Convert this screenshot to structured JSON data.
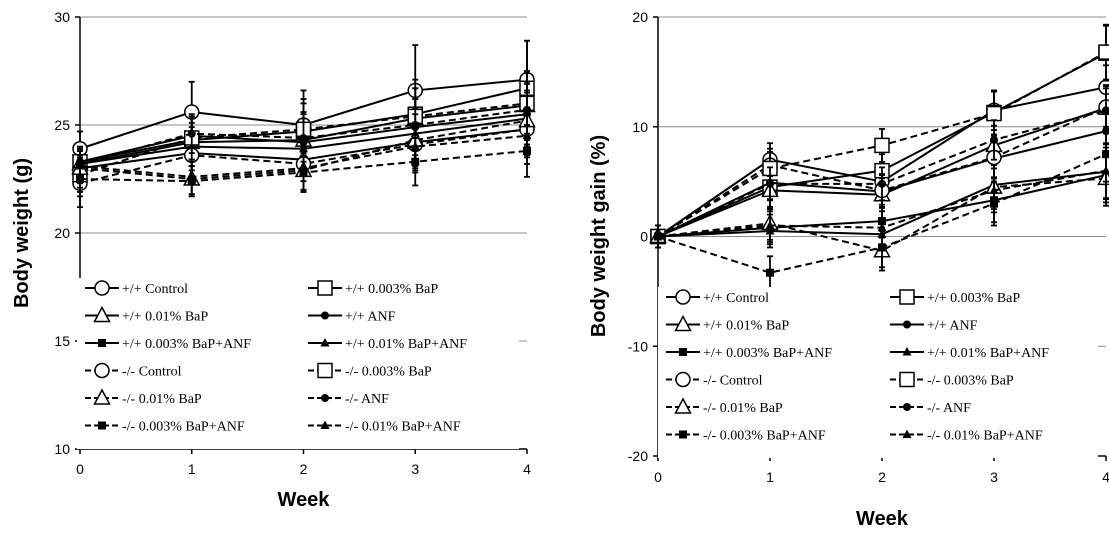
{
  "chart_data": [
    {
      "type": "line",
      "xlabel": "Week",
      "ylabel": "Body weight (g)",
      "xlim": [
        0,
        4
      ],
      "ylim": [
        10,
        30
      ],
      "xticks": [
        "0",
        "1",
        "2",
        "3",
        "4"
      ],
      "yticks": [
        "10",
        "15",
        "20",
        "25",
        "30"
      ],
      "grid": "horizontal",
      "legend_position": "bottom",
      "x": [
        0,
        1,
        2,
        3,
        4
      ],
      "series": [
        {
          "name": "+/+ Control",
          "genotype": "+/+",
          "marker": "circle",
          "values": [
            23.9,
            25.6,
            25.0,
            26.6,
            27.1
          ],
          "err": [
            0.8,
            1.4,
            1.6,
            2.1,
            1.8
          ]
        },
        {
          "name": "+/+ 0.003% BaP",
          "genotype": "+/+",
          "marker": "square",
          "values": [
            23.3,
            24.3,
            24.7,
            25.5,
            26.7
          ],
          "err": [
            0.7,
            1.0,
            1.5,
            1.6,
            2.2
          ]
        },
        {
          "name": "+/+ 0.01% BaP",
          "genotype": "+/+",
          "marker": "triangle",
          "values": [
            23.2,
            24.2,
            24.3,
            25.3,
            25.9
          ],
          "err": [
            0.6,
            0.9,
            1.3,
            1.4,
            1.6
          ]
        },
        {
          "name": "+/+ ANF",
          "genotype": "+/+",
          "marker": "dot",
          "values": [
            23.3,
            24.5,
            24.2,
            24.9,
            25.5
          ],
          "err": [
            0.6,
            0.9,
            1.1,
            1.3,
            1.4
          ]
        },
        {
          "name": "+/+ 0.003% BaP+ANF",
          "genotype": "+/+",
          "marker": "smallsquare",
          "values": [
            23.0,
            23.7,
            23.4,
            24.2,
            24.8
          ],
          "err": [
            0.6,
            0.8,
            1.0,
            1.2,
            1.3
          ]
        },
        {
          "name": "+/+ 0.01% BaP+ANF",
          "genotype": "+/+",
          "marker": "smalltriangle",
          "values": [
            23.2,
            24.0,
            23.9,
            24.6,
            25.3
          ],
          "err": [
            0.6,
            0.9,
            1.0,
            1.2,
            1.3
          ]
        },
        {
          "name": "-/- Control",
          "genotype": "-/-",
          "marker": "circle",
          "values": [
            22.3,
            23.6,
            23.2,
            24.1,
            24.8
          ],
          "err": [
            1.1,
            1.0,
            1.2,
            1.3,
            1.2
          ]
        },
        {
          "name": "-/- 0.003% BaP",
          "genotype": "-/-",
          "marker": "square",
          "values": [
            22.7,
            24.4,
            24.8,
            25.4,
            26.0
          ],
          "err": [
            0.8,
            1.0,
            1.2,
            1.3,
            1.4
          ]
        },
        {
          "name": "-/- 0.01% BaP",
          "genotype": "-/-",
          "marker": "triangle",
          "values": [
            23.0,
            22.5,
            22.9,
            24.3,
            25.2
          ],
          "err": [
            0.9,
            0.8,
            1.0,
            1.2,
            1.3
          ]
        },
        {
          "name": "-/- ANF",
          "genotype": "-/-",
          "marker": "dot",
          "values": [
            23.2,
            24.6,
            24.4,
            25.0,
            25.7
          ],
          "err": [
            0.7,
            0.9,
            1.1,
            1.2,
            1.3
          ]
        },
        {
          "name": "-/- 0.003% BaP+ANF",
          "genotype": "-/-",
          "marker": "smallsquare",
          "values": [
            22.5,
            22.4,
            22.8,
            23.3,
            23.8
          ],
          "err": [
            0.8,
            0.7,
            0.9,
            1.1,
            1.2
          ]
        },
        {
          "name": "-/- 0.01% BaP+ANF",
          "genotype": "-/-",
          "marker": "smalltriangle",
          "values": [
            23.1,
            22.6,
            23.0,
            24.0,
            24.5
          ],
          "err": [
            0.8,
            0.8,
            1.0,
            1.1,
            1.3
          ]
        }
      ]
    },
    {
      "type": "line",
      "xlabel": "Week",
      "ylabel": "Body weight  gain (%)",
      "xlim": [
        0,
        4
      ],
      "ylim": [
        -20,
        20
      ],
      "xticks": [
        "0",
        "1",
        "2",
        "3",
        "4"
      ],
      "yticks": [
        "-20",
        "-10",
        "0",
        "10",
        "20"
      ],
      "grid": "horizontal",
      "legend_position": "bottom",
      "x": [
        0,
        1,
        2,
        3,
        4
      ],
      "series": [
        {
          "name": "+/+ Control",
          "genotype": "+/+",
          "marker": "circle",
          "values": [
            0,
            7.0,
            5.0,
            11.5,
            13.6
          ],
          "err": [
            1.0,
            1.5,
            1.5,
            1.8,
            2.0
          ]
        },
        {
          "name": "+/+ 0.003% BaP",
          "genotype": "+/+",
          "marker": "square",
          "values": [
            0,
            4.5,
            6.0,
            11.3,
            16.7
          ],
          "err": [
            1.0,
            2.0,
            1.5,
            2.0,
            2.5
          ]
        },
        {
          "name": "+/+ 0.01% BaP",
          "genotype": "+/+",
          "marker": "triangle",
          "values": [
            0,
            4.2,
            3.8,
            8.3,
            11.7
          ],
          "err": [
            1.0,
            1.5,
            1.5,
            1.8,
            2.0
          ]
        },
        {
          "name": "+/+ ANF",
          "genotype": "+/+",
          "marker": "dot",
          "values": [
            0,
            4.9,
            4.1,
            7.1,
            9.6
          ],
          "err": [
            1.0,
            1.5,
            1.5,
            1.8,
            2.0
          ]
        },
        {
          "name": "+/+ 0.003% BaP+ANF",
          "genotype": "+/+",
          "marker": "smallsquare",
          "values": [
            0,
            0.8,
            1.4,
            3.3,
            5.6
          ],
          "err": [
            1.0,
            1.5,
            1.5,
            2.0,
            2.5
          ]
        },
        {
          "name": "+/+ 0.01% BaP+ANF",
          "genotype": "+/+",
          "marker": "smalltriangle",
          "values": [
            0,
            0.5,
            0.2,
            4.7,
            5.9
          ],
          "err": [
            1.0,
            1.5,
            1.5,
            2.0,
            2.5
          ]
        },
        {
          "name": "-/- Control",
          "genotype": "-/-",
          "marker": "circle",
          "values": [
            0,
            6.5,
            4.2,
            7.2,
            11.8
          ],
          "err": [
            1.0,
            1.5,
            1.5,
            1.8,
            2.0
          ]
        },
        {
          "name": "-/- 0.003% BaP",
          "genotype": "-/-",
          "marker": "square",
          "values": [
            0,
            6.2,
            8.3,
            11.2,
            16.8
          ],
          "err": [
            1.0,
            1.5,
            1.5,
            2.0,
            2.5
          ]
        },
        {
          "name": "-/- 0.01% BaP",
          "genotype": "-/-",
          "marker": "triangle",
          "values": [
            0,
            1.2,
            -1.3,
            4.5,
            5.3
          ],
          "err": [
            1.0,
            1.5,
            1.8,
            2.0,
            2.5
          ]
        },
        {
          "name": "-/- ANF",
          "genotype": "-/-",
          "marker": "dot",
          "values": [
            0,
            4.8,
            4.8,
            8.8,
            11.5
          ],
          "err": [
            1.0,
            1.5,
            1.5,
            1.8,
            2.0
          ]
        },
        {
          "name": "-/- 0.003% BaP+ANF",
          "genotype": "-/-",
          "marker": "smallsquare",
          "values": [
            0,
            -3.3,
            -1.0,
            3.0,
            7.5
          ],
          "err": [
            1.0,
            1.5,
            1.8,
            2.0,
            2.5
          ]
        },
        {
          "name": "-/- 0.01% BaP+ANF",
          "genotype": "-/-",
          "marker": "smalltriangle",
          "values": [
            0,
            1.0,
            0.8,
            4.2,
            6.0
          ],
          "err": [
            1.0,
            1.5,
            1.5,
            2.0,
            2.5
          ]
        }
      ]
    }
  ]
}
